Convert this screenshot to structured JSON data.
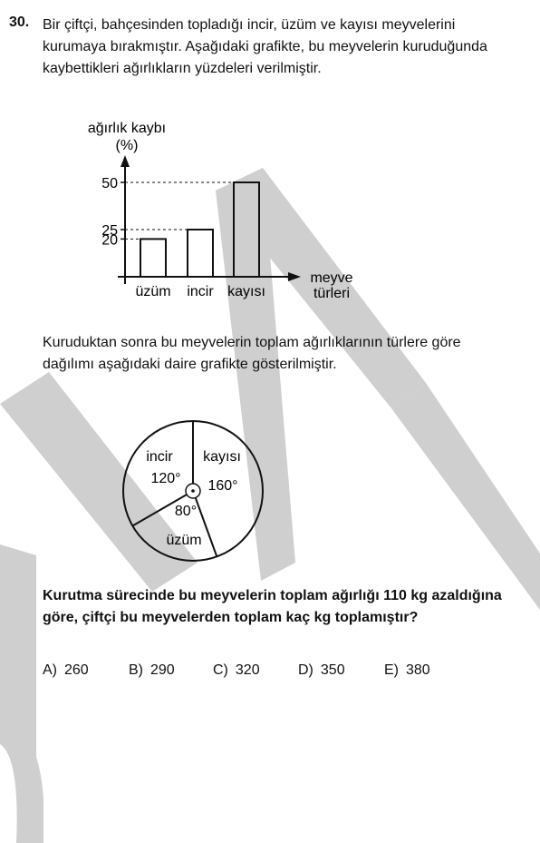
{
  "question": {
    "number": "30.",
    "stem": "Bir çiftçi, bahçesinden topladığı incir, üzüm ve kayısı meyvelerini kurumaya bırakmıştır. Aşağıdaki grafikte, bu meyvelerin kuruduğunda kaybettikleri ağırlıkların yüzdeleri verilmiştir.",
    "stem2": "Kuruduktan sonra bu meyvelerin toplam ağırlıklarının türlere göre dağılımı aşağıdaki daire grafikte gösterilmiştir.",
    "prompt": "Kurutma sürecinde bu meyvelerin toplam ağırlığı 110 kg azaldığına göre, çiftçi bu meyvelerden toplam kaç kg toplamıştır?"
  },
  "chart_data": [
    {
      "type": "bar",
      "ylabel": "ağırlık kaybı",
      "yunit": "(%)",
      "xlabel": "meyve türleri",
      "categories": [
        "üzüm",
        "incir",
        "kayısı"
      ],
      "values": [
        20,
        25,
        50
      ],
      "yticks": [
        20,
        25,
        50
      ],
      "ylim": [
        0,
        60
      ],
      "grid": false
    },
    {
      "type": "pie",
      "labels": [
        "incir",
        "kayısı",
        "üzüm"
      ],
      "values": [
        120,
        160,
        80
      ],
      "value_labels": [
        "120°",
        "160°",
        "80°"
      ]
    }
  ],
  "options": [
    {
      "label": "A)",
      "value": "260"
    },
    {
      "label": "B)",
      "value": "290"
    },
    {
      "label": "C)",
      "value": "320"
    },
    {
      "label": "D)",
      "value": "350"
    },
    {
      "label": "E)",
      "value": "380"
    }
  ],
  "colors": {
    "watermark": "#cfcfcf",
    "text": "#111111"
  }
}
